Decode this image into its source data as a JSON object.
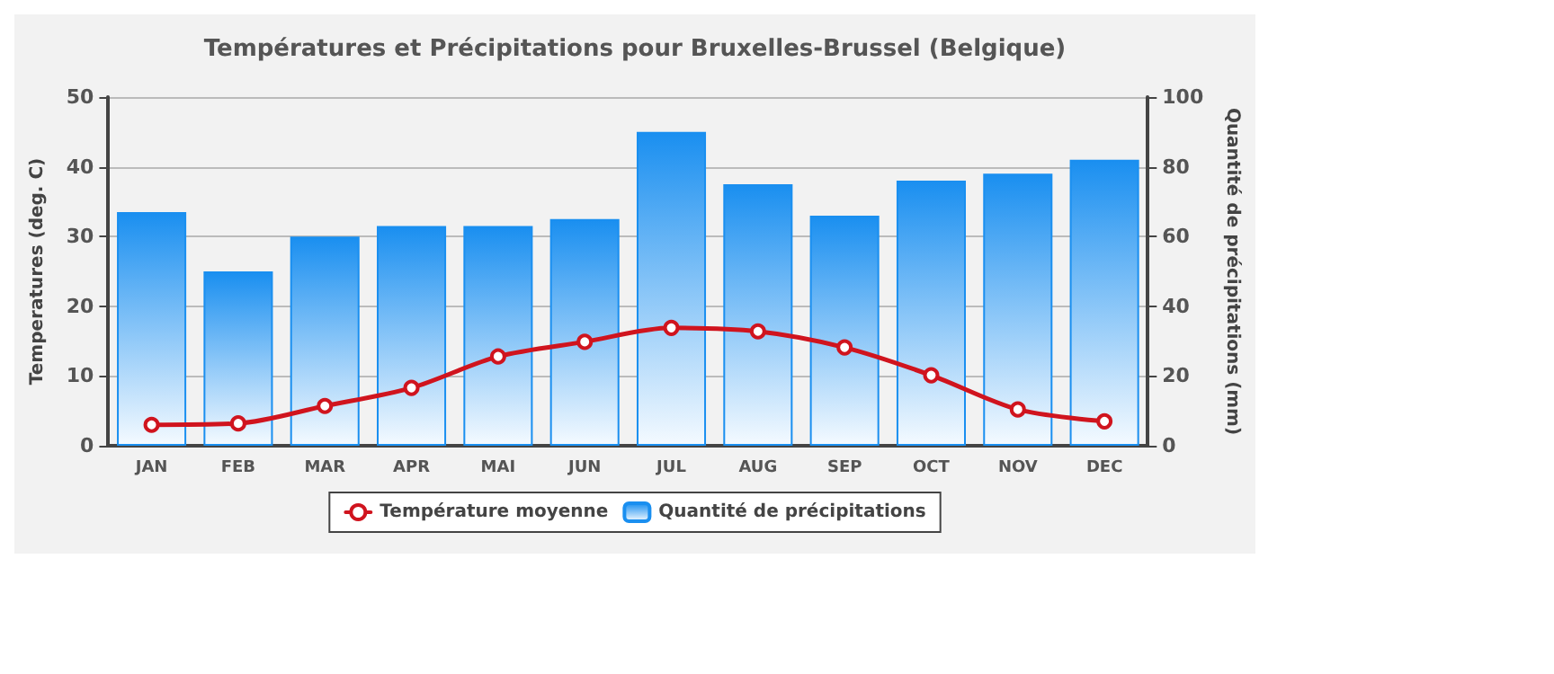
{
  "chart_data": {
    "type": "bar",
    "title": "Températures et Précipitations pour Bruxelles-Brussel (Belgique)",
    "ylabel": "Temperatures (deg. C)",
    "y2label": "Quantité de précipitations (mm)",
    "categories": [
      "JAN",
      "FEB",
      "MAR",
      "APR",
      "MAI",
      "JUN",
      "JUL",
      "AUG",
      "SEP",
      "OCT",
      "NOV",
      "DEC"
    ],
    "series": [
      {
        "name": "Température moyenne",
        "type": "line",
        "color": "#d0141e",
        "values": [
          3.0,
          3.2,
          5.7,
          8.3,
          12.8,
          14.9,
          16.9,
          16.4,
          14.1,
          10.1,
          5.2,
          3.5
        ]
      },
      {
        "name": "Quantité de précipitations",
        "axis": "y2",
        "color": "#1a8ff0",
        "values": [
          67,
          50,
          60,
          63,
          63,
          65,
          90,
          75,
          66,
          76,
          78,
          82
        ]
      }
    ],
    "ylim": [
      0,
      50
    ],
    "yticks": [
      0,
      10,
      20,
      30,
      40,
      50
    ],
    "y2lim": [
      0,
      100
    ],
    "y2ticks": [
      0,
      20,
      40,
      60,
      80,
      100
    ],
    "grid": "y",
    "legend": "bottom",
    "marker": "circle",
    "line_style": "solid"
  }
}
